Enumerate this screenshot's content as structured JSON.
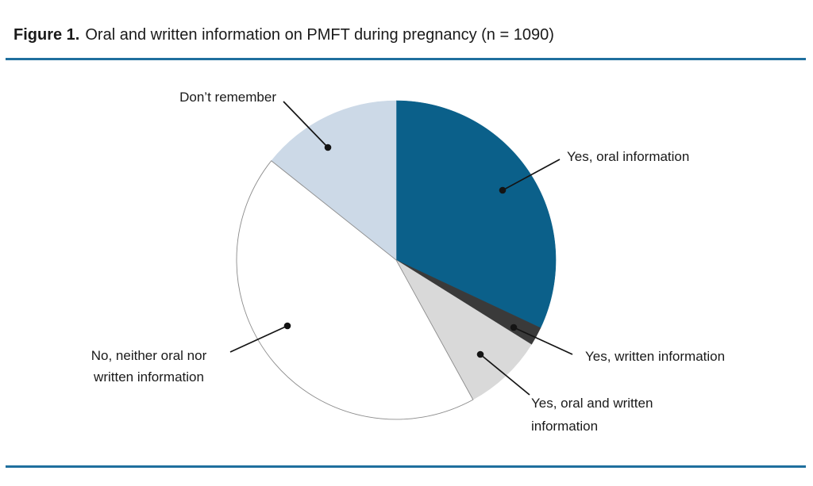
{
  "figure": {
    "label": "Figure 1.",
    "caption": "Oral and written information on PMFT during pregnancy (n = 1090)"
  },
  "chart_data": {
    "type": "pie",
    "title": "Oral and written information on PMFT during pregnancy",
    "n_total": 1090,
    "start_angle_deg": 0,
    "direction": "clockwise",
    "labels_style": "callout",
    "legend_position": "none",
    "segments": [
      {
        "label": "Yes, oral information",
        "pct_est": 32.0,
        "color": "#0b608a"
      },
      {
        "label": "Yes, written information",
        "pct_est": 1.9,
        "color": "#3a3a3a"
      },
      {
        "label": "Yes, oral and written information",
        "pct_est": 8.1,
        "color": "#d9d9d9"
      },
      {
        "label": "No, neither oral nor written information",
        "pct_est": 43.7,
        "color": "#ffffff",
        "stroke": "#8c8c8c"
      },
      {
        "label": "Don’t remember",
        "pct_est": 14.3,
        "color": "#ccd9e7"
      }
    ]
  },
  "callouts": {
    "dont_remember": {
      "text": "Don’t remember"
    },
    "yes_oral": {
      "text": "Yes, oral information"
    },
    "yes_written": {
      "text": "Yes, written information"
    },
    "yes_oral_written": {
      "text": "Yes, oral and written\ninformation"
    },
    "no_neither": {
      "text": "No, neither oral nor\nwritten information"
    }
  },
  "colors": {
    "rule": "#1f6f9e",
    "text": "#1a1a1a",
    "leader": "#141414"
  }
}
